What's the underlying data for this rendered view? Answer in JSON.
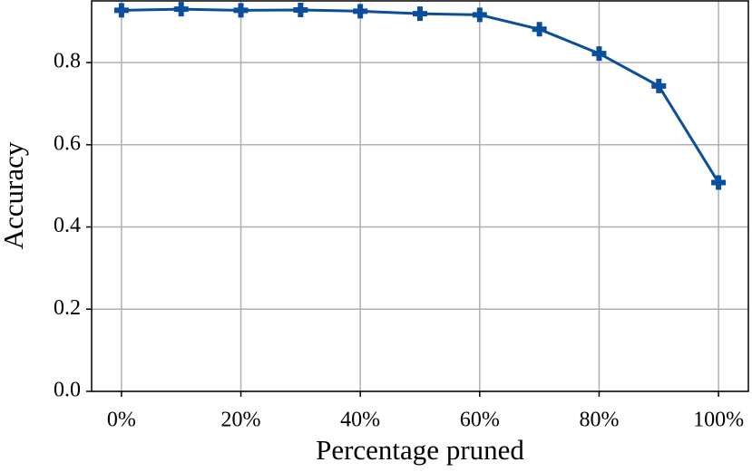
{
  "chart_data": {
    "type": "line",
    "xlabel": "Percentage pruned",
    "ylabel": "Accuracy",
    "x": [
      0,
      10,
      20,
      30,
      40,
      50,
      60,
      70,
      80,
      90,
      100
    ],
    "series": [
      {
        "color": "#0b4f9c",
        "values": [
          0.927,
          0.93,
          0.927,
          0.928,
          0.925,
          0.919,
          0.916,
          0.881,
          0.822,
          0.743,
          0.508
        ]
      }
    ],
    "xlim": [
      -5,
      105
    ],
    "ylim": [
      0,
      0.95
    ],
    "xticks": [
      {
        "value": 0,
        "label": "0%"
      },
      {
        "value": 20,
        "label": "20%"
      },
      {
        "value": 40,
        "label": "40%"
      },
      {
        "value": 60,
        "label": "60%"
      },
      {
        "value": 80,
        "label": "80%"
      },
      {
        "value": 100,
        "label": "100%"
      }
    ],
    "yticks": [
      {
        "value": 0,
        "label": "0.0"
      },
      0.2,
      0.4,
      0.6,
      0.8
    ],
    "grid": true,
    "marker": "plus-filled"
  }
}
